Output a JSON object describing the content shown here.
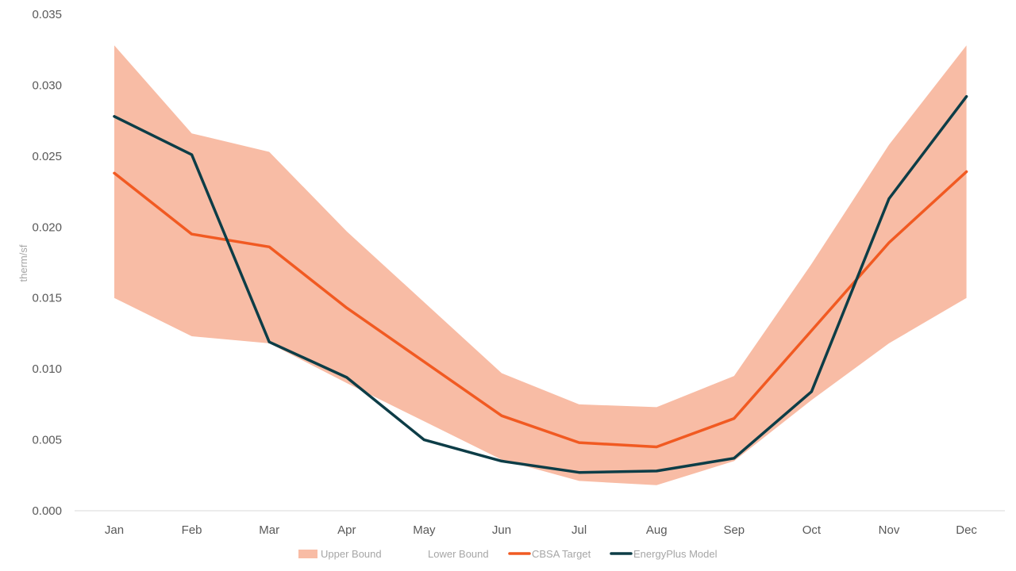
{
  "chart_data": {
    "type": "line",
    "title": "",
    "xlabel": "",
    "ylabel": "therm/sf",
    "categories": [
      "Jan",
      "Feb",
      "Mar",
      "Apr",
      "May",
      "Jun",
      "Jul",
      "Aug",
      "Sep",
      "Oct",
      "Nov",
      "Dec"
    ],
    "ylim": [
      0,
      0.035
    ],
    "yticks": [
      "0.000",
      "0.005",
      "0.010",
      "0.015",
      "0.020",
      "0.025",
      "0.030",
      "0.035"
    ],
    "grid": false,
    "legend_position": "bottom",
    "band": {
      "upper_name": "Upper Bound",
      "lower_name": "Lower Bound",
      "upper": [
        0.0328,
        0.0266,
        0.0253,
        0.0197,
        0.0147,
        0.0097,
        0.0075,
        0.0073,
        0.0095,
        0.0174,
        0.0258,
        0.0328
      ],
      "lower": [
        0.015,
        0.0123,
        0.0118,
        0.009,
        0.0063,
        0.0036,
        0.0021,
        0.0018,
        0.0035,
        0.0078,
        0.0118,
        0.015
      ],
      "color": "#f8bca5"
    },
    "series": [
      {
        "name": "CBSA Target",
        "color": "#f15a22",
        "values": [
          0.0238,
          0.0195,
          0.0186,
          0.0143,
          0.0105,
          0.0067,
          0.0048,
          0.0045,
          0.0065,
          0.0127,
          0.0189,
          0.0239
        ]
      },
      {
        "name": "EnergyPlus Model",
        "color": "#0d3d47",
        "values": [
          0.0278,
          0.0251,
          0.0119,
          0.0094,
          0.005,
          0.0035,
          0.0027,
          0.0028,
          0.0037,
          0.0084,
          0.022,
          0.0292
        ]
      }
    ]
  }
}
